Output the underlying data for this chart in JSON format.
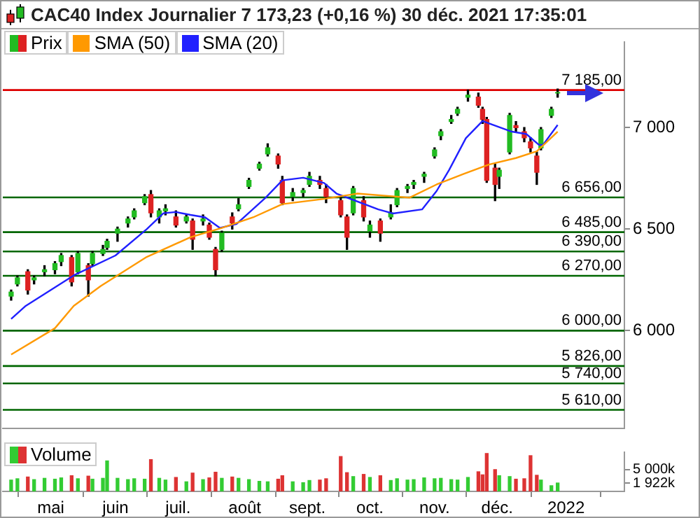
{
  "chart_data": [
    {
      "type": "candlestick",
      "title": "CAC40 Index Journalier 7 173,23 (+0,16 %) 30 déc. 2021 17:35:01",
      "legend": "top left",
      "tick_labels": "y",
      "xlim": [
        "2021-04-08",
        "2022-01-31"
      ],
      "ylim": [
        5520,
        7420
      ],
      "yticks": [
        {
          "value": 7000,
          "label": "7 000"
        },
        {
          "value": 6500,
          "label": "6 500"
        },
        {
          "value": 6000,
          "label": "6 000"
        }
      ],
      "series": [
        {
          "name": "Prix",
          "x": [
            "2021-04-12",
            "2021-04-15",
            "2021-04-20",
            "2021-04-23",
            "2021-04-28",
            "2021-05-03",
            "2021-05-06",
            "2021-05-11",
            "2021-05-14",
            "2021-05-19",
            "2021-05-21",
            "2021-05-26",
            "2021-05-28",
            "2021-06-02",
            "2021-06-07",
            "2021-06-10",
            "2021-06-15",
            "2021-06-18",
            "2021-06-22",
            "2021-06-25",
            "2021-06-30",
            "2021-07-05",
            "2021-07-08",
            "2021-07-13",
            "2021-07-16",
            "2021-07-19",
            "2021-07-22",
            "2021-07-27",
            "2021-07-30",
            "2021-08-04",
            "2021-08-09",
            "2021-08-13",
            "2021-08-18",
            "2021-08-20",
            "2021-08-25",
            "2021-08-30",
            "2021-09-02",
            "2021-09-07",
            "2021-09-10",
            "2021-09-17",
            "2021-09-20",
            "2021-09-23",
            "2021-09-28",
            "2021-10-01",
            "2021-10-06",
            "2021-10-11",
            "2021-10-14",
            "2021-10-19",
            "2021-10-22",
            "2021-10-27",
            "2021-11-01",
            "2021-11-04",
            "2021-11-09",
            "2021-11-12",
            "2021-11-17",
            "2021-11-22",
            "2021-11-24",
            "2021-11-26",
            "2021-11-30",
            "2021-12-02",
            "2021-12-07",
            "2021-12-10",
            "2021-12-14",
            "2021-12-17",
            "2021-12-20",
            "2021-12-22",
            "2021-12-27",
            "2021-12-30"
          ],
          "ohlc": [
            [
              6170,
              6200,
              6150,
              6190
            ],
            [
              6230,
              6270,
              6220,
              6260
            ],
            [
              6290,
              6300,
              6180,
              6200
            ],
            [
              6250,
              6270,
              6230,
              6260
            ],
            [
              6290,
              6320,
              6270,
              6300
            ],
            [
              6300,
              6340,
              6280,
              6330
            ],
            [
              6340,
              6380,
              6320,
              6370
            ],
            [
              6360,
              6370,
              6220,
              6240
            ],
            [
              6290,
              6390,
              6280,
              6380
            ],
            [
              6320,
              6330,
              6170,
              6250
            ],
            [
              6330,
              6390,
              6320,
              6380
            ],
            [
              6380,
              6420,
              6370,
              6400
            ],
            [
              6410,
              6450,
              6400,
              6440
            ],
            [
              6480,
              6510,
              6440,
              6500
            ],
            [
              6530,
              6560,
              6510,
              6550
            ],
            [
              6560,
              6600,
              6550,
              6590
            ],
            [
              6630,
              6670,
              6620,
              6660
            ],
            [
              6670,
              6690,
              6560,
              6580
            ],
            [
              6560,
              6600,
              6530,
              6590
            ],
            [
              6590,
              6620,
              6570,
              6600
            ],
            [
              6560,
              6590,
              6510,
              6520
            ],
            [
              6540,
              6570,
              6530,
              6560
            ],
            [
              6540,
              6550,
              6400,
              6450
            ],
            [
              6540,
              6570,
              6520,
              6550
            ],
            [
              6520,
              6530,
              6450,
              6460
            ],
            [
              6400,
              6410,
              6270,
              6300
            ],
            [
              6400,
              6490,
              6390,
              6480
            ],
            [
              6560,
              6580,
              6500,
              6530
            ],
            [
              6600,
              6650,
              6590,
              6620
            ],
            [
              6710,
              6750,
              6700,
              6740
            ],
            [
              6800,
              6830,
              6790,
              6820
            ],
            [
              6870,
              6920,
              6860,
              6900
            ],
            [
              6860,
              6870,
              6800,
              6820
            ],
            [
              6740,
              6760,
              6620,
              6630
            ],
            [
              6660,
              6700,
              6640,
              6680
            ],
            [
              6680,
              6700,
              6660,
              6690
            ],
            [
              6720,
              6780,
              6710,
              6760
            ],
            [
              6740,
              6760,
              6700,
              6720
            ],
            [
              6700,
              6720,
              6630,
              6660
            ],
            [
              6640,
              6660,
              6560,
              6570
            ],
            [
              6560,
              6570,
              6400,
              6460
            ],
            [
              6580,
              6710,
              6570,
              6700
            ],
            [
              6640,
              6660,
              6540,
              6560
            ],
            [
              6490,
              6540,
              6460,
              6520
            ],
            [
              6540,
              6550,
              6440,
              6480
            ],
            [
              6560,
              6620,
              6550,
              6580
            ],
            [
              6620,
              6700,
              6610,
              6690
            ],
            [
              6700,
              6720,
              6680,
              6710
            ],
            [
              6720,
              6740,
              6700,
              6730
            ],
            [
              6760,
              6780,
              6730,
              6770
            ],
            [
              6860,
              6900,
              6850,
              6890
            ],
            [
              6960,
              6990,
              6940,
              6980
            ],
            [
              7030,
              7060,
              7020,
              7040
            ],
            [
              7070,
              7100,
              7060,
              7090
            ],
            [
              7150,
              7185,
              7130,
              7160
            ],
            [
              7150,
              7170,
              7100,
              7110
            ],
            [
              7090,
              7100,
              7020,
              7040
            ],
            [
              7040,
              7050,
              6730,
              6740
            ],
            [
              6800,
              6820,
              6640,
              6720
            ],
            [
              6760,
              6800,
              6700,
              6790
            ],
            [
              6880,
              7070,
              6870,
              7060
            ],
            [
              7010,
              7030,
              6980,
              7000
            ],
            [
              6980,
              7000,
              6930,
              6950
            ],
            [
              6930,
              6950,
              6880,
              6900
            ],
            [
              6860,
              6880,
              6720,
              6780
            ],
            [
              6900,
              7000,
              6890,
              6990
            ],
            [
              7060,
              7100,
              7050,
              7090
            ],
            [
              7170,
              7190,
              7150,
              7173
            ]
          ],
          "colors": [
            "#22bb22",
            "#22bb22",
            "#dd2222",
            "#22bb22",
            "#22bb22",
            "#22bb22",
            "#22bb22",
            "#dd2222",
            "#22bb22",
            "#dd2222",
            "#22bb22",
            "#22bb22",
            "#22bb22",
            "#22bb22",
            "#22bb22",
            "#22bb22",
            "#22bb22",
            "#dd2222",
            "#22bb22",
            "#22bb22",
            "#dd2222",
            "#22bb22",
            "#dd2222",
            "#22bb22",
            "#dd2222",
            "#dd2222",
            "#22bb22",
            "#dd2222",
            "#22bb22",
            "#22bb22",
            "#22bb22",
            "#22bb22",
            "#dd2222",
            "#dd2222",
            "#22bb22",
            "#22bb22",
            "#22bb22",
            "#dd2222",
            "#dd2222",
            "#dd2222",
            "#dd2222",
            "#22bb22",
            "#dd2222",
            "#22bb22",
            "#dd2222",
            "#22bb22",
            "#22bb22",
            "#22bb22",
            "#22bb22",
            "#22bb22",
            "#22bb22",
            "#22bb22",
            "#22bb22",
            "#22bb22",
            "#22bb22",
            "#dd2222",
            "#dd2222",
            "#dd2222",
            "#dd2222",
            "#22bb22",
            "#22bb22",
            "#dd2222",
            "#dd2222",
            "#dd2222",
            "#dd2222",
            "#22bb22",
            "#22bb22",
            "#22bb22"
          ]
        },
        {
          "name": "SMA (50)",
          "type": "line",
          "color": "#ff9900",
          "x": [
            "2021-04-12",
            "2021-05-03",
            "2021-05-12",
            "2021-05-25",
            "2021-06-16",
            "2021-07-07",
            "2021-07-22",
            "2021-08-06",
            "2021-08-20",
            "2021-09-09",
            "2021-09-25",
            "2021-10-20",
            "2021-11-02",
            "2021-11-15",
            "2021-11-27",
            "2021-12-10",
            "2021-12-20",
            "2021-12-30"
          ],
          "values": [
            5882,
            6012,
            6122,
            6220,
            6363,
            6460,
            6506,
            6558,
            6623,
            6649,
            6675,
            6655,
            6720,
            6772,
            6818,
            6850,
            6883,
            6980
          ]
        },
        {
          "name": "SMA (20)",
          "type": "line",
          "color": "#2020ff",
          "x": [
            "2021-04-12",
            "2021-04-19",
            "2021-05-12",
            "2021-06-01",
            "2021-06-16",
            "2021-06-24",
            "2021-06-30",
            "2021-07-07",
            "2021-07-14",
            "2021-07-21",
            "2021-07-29",
            "2021-08-12",
            "2021-08-20",
            "2021-08-30",
            "2021-09-09",
            "2021-09-15",
            "2021-10-05",
            "2021-10-12",
            "2021-10-26",
            "2021-11-02",
            "2021-11-08",
            "2021-11-16",
            "2021-11-24",
            "2021-11-29",
            "2021-12-08",
            "2021-12-15",
            "2021-12-21",
            "2021-12-23",
            "2021-12-30"
          ],
          "values": [
            6058,
            6122,
            6272,
            6370,
            6500,
            6578,
            6584,
            6570,
            6558,
            6506,
            6525,
            6655,
            6740,
            6753,
            6727,
            6675,
            6597,
            6577,
            6597,
            6688,
            6792,
            6948,
            7032,
            7013,
            6980,
            6968,
            6915,
            6915,
            7013
          ]
        }
      ],
      "ref_lines": [
        {
          "axis": "y",
          "value": 7185,
          "label": "7 185,00",
          "color": "#dd0000"
        },
        {
          "axis": "y",
          "value": 6656,
          "label": "6 656,00",
          "color": "#006600"
        },
        {
          "axis": "y",
          "value": 6485,
          "label": "6 485,00",
          "color": "#006600"
        },
        {
          "axis": "y",
          "value": 6390,
          "label": "6 390,00",
          "color": "#006600"
        },
        {
          "axis": "y",
          "value": 6270,
          "label": "6 270,00",
          "color": "#006600"
        },
        {
          "axis": "y",
          "value": 6000,
          "label": "6 000,00",
          "color": "#006600"
        },
        {
          "axis": "y",
          "value": 5826,
          "label": "5 826,00",
          "color": "#006600"
        },
        {
          "axis": "y",
          "value": 5740,
          "label": "5 740,00",
          "color": "#006600"
        },
        {
          "axis": "y",
          "value": 5610,
          "label": "5 610,00",
          "color": "#006600"
        }
      ]
    },
    {
      "type": "bar",
      "legend": "top left",
      "xlim": [
        "2021-04-08",
        "2022-01-31"
      ],
      "xticks": [
        {
          "value": "2021-05-01",
          "label": "mai"
        },
        {
          "value": "2021-06-01",
          "label": "juin"
        },
        {
          "value": "2021-07-01",
          "label": "juil."
        },
        {
          "value": "2021-08-02",
          "label": "août"
        },
        {
          "value": "2021-09-01",
          "label": "sept."
        },
        {
          "value": "2021-10-01",
          "label": "oct."
        },
        {
          "value": "2021-11-01",
          "label": "nov."
        },
        {
          "value": "2021-12-01",
          "label": "déc."
        },
        {
          "value": "2022-01-03",
          "label": "2022"
        }
      ],
      "ylim": [
        0,
        9000
      ],
      "yticks": [
        {
          "value": 5000,
          "label": "5 000k"
        },
        {
          "value": 1922,
          "label": "1 922k"
        }
      ],
      "series": [
        {
          "name": "Volume",
          "x": [
            "2021-04-12",
            "2021-04-15",
            "2021-04-20",
            "2021-04-23",
            "2021-04-28",
            "2021-05-03",
            "2021-05-06",
            "2021-05-11",
            "2021-05-14",
            "2021-05-19",
            "2021-05-21",
            "2021-05-26",
            "2021-05-28",
            "2021-06-02",
            "2021-06-07",
            "2021-06-10",
            "2021-06-15",
            "2021-06-18",
            "2021-06-22",
            "2021-06-25",
            "2021-06-30",
            "2021-07-05",
            "2021-07-08",
            "2021-07-13",
            "2021-07-16",
            "2021-07-19",
            "2021-07-22",
            "2021-07-27",
            "2021-07-30",
            "2021-08-04",
            "2021-08-09",
            "2021-08-13",
            "2021-08-18",
            "2021-08-20",
            "2021-08-25",
            "2021-08-30",
            "2021-09-02",
            "2021-09-07",
            "2021-09-10",
            "2021-09-17",
            "2021-09-20",
            "2021-09-23",
            "2021-09-28",
            "2021-10-01",
            "2021-10-06",
            "2021-10-11",
            "2021-10-14",
            "2021-10-19",
            "2021-10-22",
            "2021-10-27",
            "2021-11-01",
            "2021-11-04",
            "2021-11-09",
            "2021-11-12",
            "2021-11-17",
            "2021-11-22",
            "2021-11-24",
            "2021-11-26",
            "2021-11-30",
            "2021-12-02",
            "2021-12-07",
            "2021-12-10",
            "2021-12-14",
            "2021-12-17",
            "2021-12-20",
            "2021-12-22",
            "2021-12-27",
            "2021-12-30"
          ],
          "values": [
            2600,
            2900,
            3300,
            2700,
            3000,
            2800,
            3100,
            3600,
            2900,
            3500,
            2800,
            3000,
            7000,
            3000,
            2700,
            2900,
            2800,
            7300,
            3000,
            2600,
            3200,
            2200,
            4200,
            2700,
            3100,
            4400,
            3000,
            3300,
            3000,
            2700,
            2300,
            2200,
            2800,
            3600,
            2200,
            2000,
            2500,
            2600,
            2900,
            8000,
            4300,
            3400,
            3900,
            3200,
            3600,
            2500,
            2900,
            2600,
            2700,
            3100,
            2900,
            3000,
            2700,
            2600,
            3200,
            4500,
            3800,
            8700,
            5000,
            3600,
            3400,
            2800,
            2900,
            8200,
            3700,
            2600,
            1300,
            1922
          ],
          "colors": [
            "#33cc33",
            "#33cc33",
            "#dd3333",
            "#33cc33",
            "#33cc33",
            "#33cc33",
            "#33cc33",
            "#dd3333",
            "#33cc33",
            "#dd3333",
            "#33cc33",
            "#33cc33",
            "#33cc33",
            "#33cc33",
            "#33cc33",
            "#33cc33",
            "#33cc33",
            "#dd3333",
            "#33cc33",
            "#33cc33",
            "#dd3333",
            "#33cc33",
            "#dd3333",
            "#33cc33",
            "#dd3333",
            "#dd3333",
            "#33cc33",
            "#dd3333",
            "#33cc33",
            "#33cc33",
            "#33cc33",
            "#33cc33",
            "#dd3333",
            "#dd3333",
            "#33cc33",
            "#33cc33",
            "#33cc33",
            "#dd3333",
            "#dd3333",
            "#dd3333",
            "#dd3333",
            "#33cc33",
            "#dd3333",
            "#33cc33",
            "#dd3333",
            "#33cc33",
            "#33cc33",
            "#33cc33",
            "#33cc33",
            "#33cc33",
            "#33cc33",
            "#33cc33",
            "#33cc33",
            "#33cc33",
            "#33cc33",
            "#dd3333",
            "#dd3333",
            "#dd3333",
            "#dd3333",
            "#33cc33",
            "#33cc33",
            "#dd3333",
            "#dd3333",
            "#dd3333",
            "#dd3333",
            "#33cc33",
            "#33cc33",
            "#33cc33"
          ]
        }
      ]
    }
  ]
}
